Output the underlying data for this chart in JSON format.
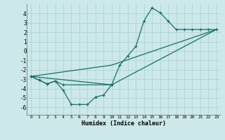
{
  "xlabel": "Humidex (Indice chaleur)",
  "background_color": "#cce8e8",
  "line_color": "#1a6e6a",
  "grid_color": "#add4d4",
  "xlim": [
    -0.5,
    23.5
  ],
  "ylim": [
    -6.8,
    5.0
  ],
  "xticks": [
    0,
    1,
    2,
    3,
    4,
    5,
    6,
    7,
    8,
    9,
    10,
    11,
    12,
    13,
    14,
    15,
    16,
    17,
    18,
    19,
    20,
    21,
    22,
    23
  ],
  "yticks": [
    -6,
    -5,
    -4,
    -3,
    -2,
    -1,
    0,
    1,
    2,
    3,
    4
  ],
  "curve_bottom_x": [
    0,
    1,
    2,
    3,
    4,
    5,
    6,
    7,
    8,
    9,
    10
  ],
  "curve_bottom_y": [
    -2.7,
    -3.1,
    -3.5,
    -3.2,
    -4.2,
    -5.7,
    -5.7,
    -5.7,
    -4.9,
    -4.7,
    -3.6
  ],
  "curve_top_x": [
    0,
    1,
    2,
    3,
    4,
    10,
    11,
    12,
    13,
    14,
    15,
    16,
    17,
    18,
    19,
    20,
    21,
    22,
    23
  ],
  "curve_top_y": [
    -2.7,
    -3.1,
    -3.5,
    -3.2,
    -3.6,
    -3.6,
    -1.5,
    -0.5,
    0.5,
    3.2,
    4.6,
    4.1,
    3.2,
    2.3,
    2.3,
    2.3,
    2.3,
    2.3,
    2.3
  ],
  "line1_x": [
    0,
    23
  ],
  "line1_y": [
    -2.7,
    2.3
  ],
  "line2_x": [
    0,
    23
  ],
  "line2_y": [
    -2.7,
    2.3
  ],
  "line3_x": [
    0,
    10,
    23
  ],
  "line3_y": [
    -2.7,
    -3.6,
    2.3
  ],
  "line4_x": [
    0,
    10,
    23
  ],
  "line4_y": [
    -2.7,
    -1.5,
    2.3
  ]
}
